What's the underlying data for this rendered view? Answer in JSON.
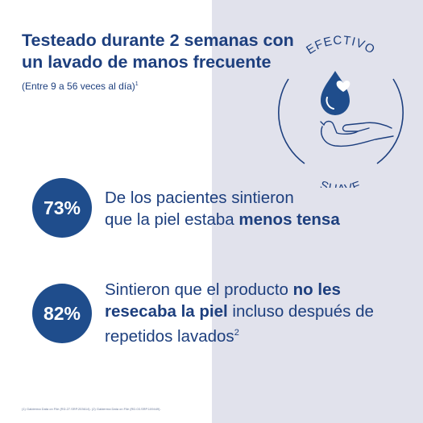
{
  "headline": {
    "line1": "Testeado durante 2 semanas con",
    "line2": "un lavado de manos frecuente"
  },
  "subtitle": {
    "text": "(Entre 9 a 56 veces al día)",
    "ref": "1"
  },
  "emblem": {
    "top_word": "EFECTIVO",
    "bottom_word": "SUAVE",
    "icon": "hand-holding-drop-with-heart-icon"
  },
  "stats": [
    {
      "value": "73%",
      "line1": "De los pacientes sintieron",
      "line2_prefix": "que la piel estaba ",
      "line2_bold": "menos tensa"
    },
    {
      "value": "82%",
      "line1_prefix": "Sintieron que el producto ",
      "line1_bold": "no les",
      "line2_bold": "resecaba la piel",
      "line2_suffix": " incluso después de",
      "line3": "repetidos lavados",
      "ref": "2"
    }
  ],
  "footnote": "(1) Galderma Data on File (RD.27.SRP.203614). (2) Galderma Data on File (RD.03.SRP.109449).",
  "colors": {
    "brand_blue": "#1f4d8c",
    "text_blue": "#1d3f7e",
    "panel_gray": "#e1e2ec"
  }
}
